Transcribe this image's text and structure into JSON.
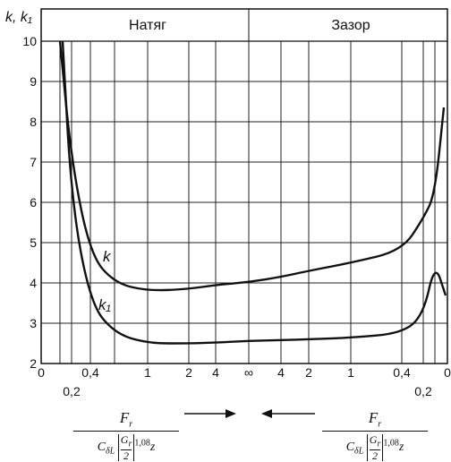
{
  "chart_data": {
    "type": "line",
    "ylabel": "k, k₁",
    "ylim": [
      2,
      10
    ],
    "y_ticks": [
      "2",
      "3",
      "4",
      "5",
      "6",
      "7",
      "8",
      "9",
      "10"
    ],
    "header_left": "Натяг",
    "header_right": "Зазор",
    "x_tick_labels_main": [
      "0",
      "0,4",
      "1",
      "2",
      "4",
      "∞",
      "4",
      "2",
      "1",
      "0,4",
      "0"
    ],
    "x_tick_labels_lower": [
      "0,2",
      "0,2"
    ],
    "x_positions_note": "reversed symmetric axis: 0 → ∞ (Натяг) ∞ → 0 (Зазор)",
    "series": [
      {
        "name": "k",
        "points": [
          [
            0.2,
            7.0
          ],
          [
            0.4,
            4.7
          ],
          [
            0.6,
            4.0
          ],
          [
            1,
            3.8
          ],
          [
            2,
            3.85
          ],
          [
            4,
            3.95
          ],
          [
            9999,
            4.02
          ],
          [
            -4,
            4.15
          ],
          [
            -2,
            4.3
          ],
          [
            -1,
            4.5
          ],
          [
            -0.4,
            4.8
          ],
          [
            -0.2,
            5.6
          ],
          [
            -0.1,
            6.2
          ]
        ]
      },
      {
        "name": "k₁",
        "points": [
          [
            0.2,
            6.0
          ],
          [
            0.4,
            3.5
          ],
          [
            0.6,
            2.75
          ],
          [
            1,
            2.5
          ],
          [
            2,
            2.5
          ],
          [
            4,
            2.52
          ],
          [
            9999,
            2.56
          ],
          [
            -4,
            2.58
          ],
          [
            -2,
            2.6
          ],
          [
            -1,
            2.64
          ],
          [
            -0.4,
            2.75
          ],
          [
            -0.2,
            3.2
          ],
          [
            -0.1,
            4.5
          ]
        ]
      }
    ],
    "curve_labels": [
      "k",
      "k₁"
    ],
    "arrow_left_direction": "right",
    "arrow_right_direction": "left"
  },
  "formula": {
    "numerator": "F",
    "numerator_sub": "r",
    "den_c": "C",
    "den_c_sub": "δL",
    "den_g": "G",
    "den_g_sub": "r",
    "den_two": "2",
    "den_exp": "1,08",
    "den_z": "z"
  }
}
